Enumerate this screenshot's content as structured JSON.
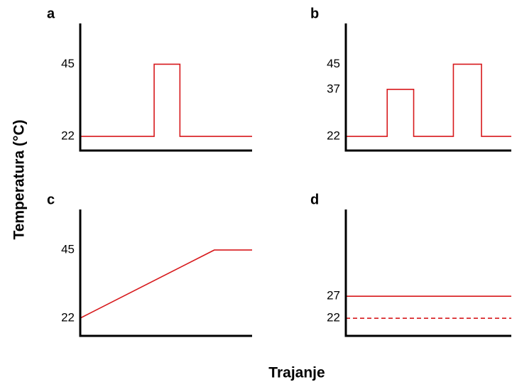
{
  "ylabel": "Temperatura (°C)",
  "xlabel": "Trajanje",
  "chart_data": [
    {
      "type": "line",
      "title": "a",
      "xlim": [
        0,
        10
      ],
      "ylim": [
        17.5,
        58
      ],
      "yticks": [
        22,
        45
      ],
      "x": [
        0,
        4.3,
        4.3,
        5.8,
        5.8,
        10
      ],
      "series": [
        {
          "color": "#d7191c",
          "values": [
            22,
            22,
            45,
            45,
            22,
            22
          ]
        }
      ]
    },
    {
      "type": "line",
      "title": "b",
      "xlim": [
        0,
        10
      ],
      "ylim": [
        17.5,
        58
      ],
      "yticks": [
        22,
        37,
        45
      ],
      "x": [
        0,
        2.5,
        2.5,
        4.1,
        4.1,
        6.5,
        6.5,
        8.2,
        8.2,
        10
      ],
      "series": [
        {
          "color": "#d7191c",
          "values": [
            22,
            22,
            37,
            37,
            22,
            22,
            45,
            45,
            22,
            22
          ]
        }
      ]
    },
    {
      "type": "line",
      "title": "c",
      "xlim": [
        0,
        10
      ],
      "ylim": [
        16,
        58.7
      ],
      "yticks": [
        22,
        45
      ],
      "x": [
        0,
        7.8,
        10
      ],
      "series": [
        {
          "color": "#d7191c",
          "values": [
            22,
            45,
            45
          ]
        }
      ]
    },
    {
      "type": "line",
      "title": "d",
      "xlim": [
        0,
        10
      ],
      "ylim": [
        18,
        46.7
      ],
      "yticks": [
        22,
        27
      ],
      "x": [
        0,
        10
      ],
      "series": [
        {
          "color": "#d7191c",
          "values": [
            27,
            27
          ]
        },
        {
          "color": "#d7191c",
          "values": [
            22,
            22
          ],
          "dashed": true
        }
      ]
    }
  ]
}
